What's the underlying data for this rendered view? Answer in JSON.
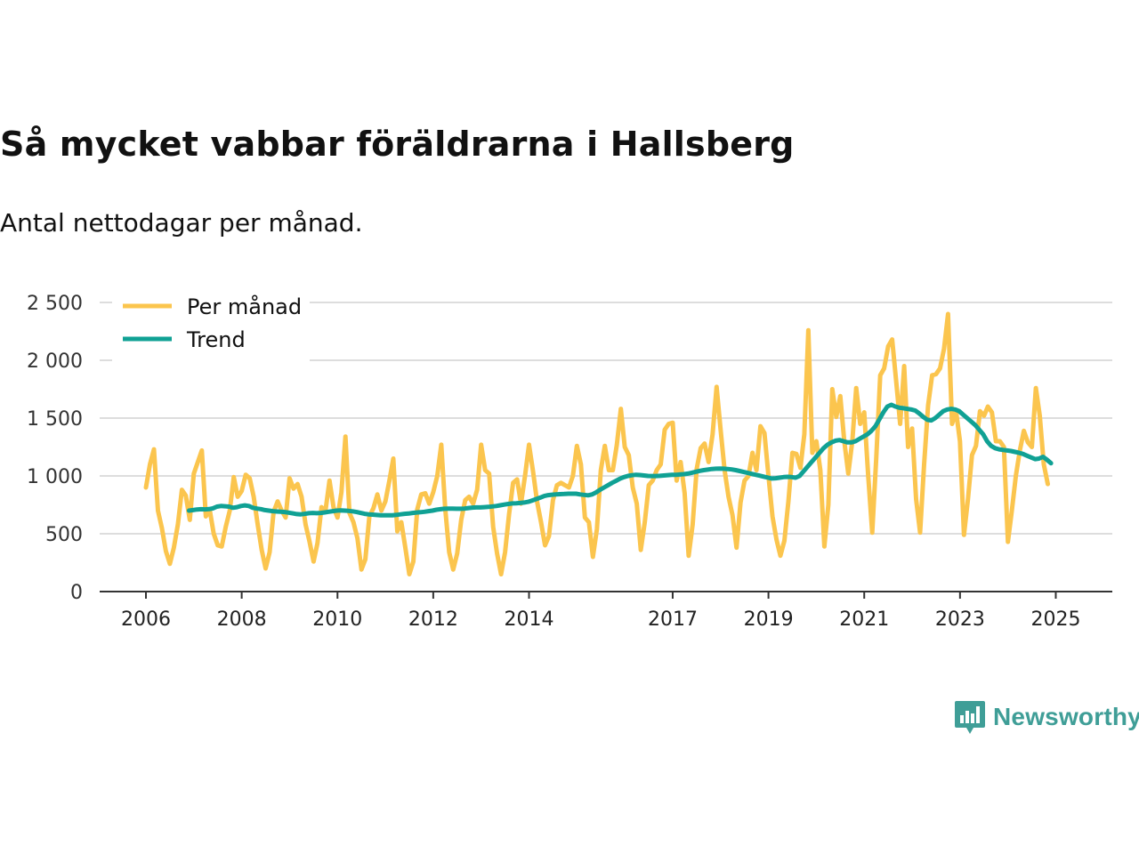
{
  "title": "Så mycket vabbar föräldrarna i Hallsberg",
  "subtitle": "Antal nettodagar per månad.",
  "logo": {
    "text": "Newsworthy"
  },
  "colors": {
    "monthly": "#fbc54e",
    "trend": "#10a194",
    "grid": "#dddddd",
    "axis": "#333333"
  },
  "chart_data": {
    "type": "line",
    "x_start": 2006.0,
    "x_step_months": 1,
    "xlim": [
      2006.0,
      2025.4
    ],
    "ylim": [
      0,
      2500
    ],
    "yticks": [
      0,
      500,
      1000,
      1500,
      2000,
      2500
    ],
    "ytick_labels": [
      "0",
      "500",
      "1 000",
      "1 500",
      "2 000",
      "2 500"
    ],
    "xticks": [
      2006,
      2008,
      2010,
      2012,
      2014,
      2017,
      2019,
      2021,
      2023,
      2025
    ],
    "xtick_labels": [
      "2006",
      "2008",
      "2010",
      "2012",
      "2014",
      "2017",
      "2019",
      "2021",
      "2023",
      "2025"
    ],
    "legend": [
      "Per månad",
      "Trend"
    ],
    "series": [
      {
        "name": "Per månad",
        "values": [
          900,
          1100,
          1230,
          700,
          550,
          350,
          240,
          380,
          580,
          880,
          830,
          620,
          1020,
          1120,
          1220,
          650,
          700,
          500,
          400,
          390,
          560,
          700,
          990,
          820,
          870,
          1010,
          980,
          820,
          580,
          360,
          200,
          340,
          690,
          780,
          700,
          640,
          980,
          890,
          930,
          820,
          580,
          430,
          260,
          420,
          730,
          700,
          960,
          730,
          640,
          860,
          1340,
          680,
          600,
          460,
          190,
          280,
          650,
          720,
          840,
          700,
          780,
          960,
          1150,
          520,
          600,
          380,
          150,
          260,
          710,
          840,
          850,
          760,
          860,
          1000,
          1270,
          720,
          340,
          190,
          330,
          620,
          790,
          820,
          760,
          880,
          1270,
          1050,
          1020,
          560,
          330,
          150,
          340,
          670,
          940,
          970,
          760,
          1000,
          1270,
          1040,
          780,
          600,
          400,
          480,
          790,
          920,
          940,
          920,
          900,
          1000,
          1260,
          1100,
          640,
          600,
          300,
          540,
          1050,
          1260,
          1050,
          1050,
          1270,
          1580,
          1250,
          1180,
          900,
          760,
          360,
          600,
          920,
          960,
          1050,
          1100,
          1400,
          1450,
          1460,
          960,
          1120,
          850,
          310,
          580,
          1060,
          1240,
          1280,
          1120,
          1360,
          1770,
          1400,
          1050,
          820,
          660,
          380,
          770,
          960,
          1000,
          1200,
          1050,
          1430,
          1370,
          1000,
          650,
          450,
          310,
          440,
          780,
          1200,
          1190,
          1070,
          1360,
          2260,
          1200,
          1300,
          1050,
          390,
          750,
          1750,
          1510,
          1690,
          1300,
          1020,
          1300,
          1760,
          1450,
          1550,
          1000,
          510,
          1150,
          1870,
          1930,
          2120,
          2180,
          1820,
          1450,
          1950,
          1250,
          1410,
          800,
          510,
          1100,
          1610,
          1870,
          1880,
          1930,
          2100,
          2400,
          1450,
          1560,
          1300,
          490,
          800,
          1180,
          1260,
          1560,
          1520,
          1600,
          1550,
          1300,
          1300,
          1250,
          430,
          700,
          1000,
          1220,
          1390,
          1290,
          1250,
          1760,
          1520,
          1100,
          930
        ]
      },
      {
        "name": "Trend",
        "x_start": 2006.9,
        "values": [
          700,
          705,
          710,
          712,
          711,
          713,
          720,
          735,
          740,
          738,
          735,
          725,
          730,
          740,
          745,
          740,
          725,
          718,
          713,
          705,
          700,
          695,
          692,
          690,
          688,
          682,
          676,
          670,
          668,
          672,
          678,
          680,
          678,
          680,
          685,
          690,
          695,
          700,
          702,
          700,
          698,
          694,
          688,
          680,
          672,
          668,
          665,
          662,
          660,
          660,
          660,
          660,
          663,
          668,
          672,
          675,
          680,
          684,
          686,
          690,
          695,
          700,
          708,
          712,
          716,
          718,
          718,
          716,
          716,
          718,
          722,
          726,
          728,
          728,
          730,
          732,
          736,
          740,
          746,
          752,
          758,
          762,
          764,
          766,
          770,
          776,
          788,
          800,
          812,
          826,
          834,
          838,
          840,
          842,
          844,
          846,
          846,
          846,
          840,
          836,
          832,
          840,
          858,
          880,
          900,
          920,
          940,
          958,
          976,
          990,
          1000,
          1006,
          1010,
          1008,
          1004,
          1000,
          999,
          999,
          1001,
          1004,
          1007,
          1009,
          1010,
          1012,
          1015,
          1020,
          1028,
          1036,
          1044,
          1050,
          1055,
          1060,
          1062,
          1063,
          1062,
          1060,
          1056,
          1050,
          1042,
          1034,
          1026,
          1018,
          1010,
          1002,
          994,
          986,
          978,
          980,
          985,
          990,
          992,
          990,
          985,
          1000,
          1040,
          1080,
          1120,
          1160,
          1200,
          1240,
          1270,
          1290,
          1305,
          1310,
          1300,
          1290,
          1290,
          1300,
          1320,
          1340,
          1360,
          1390,
          1430,
          1490,
          1550,
          1600,
          1615,
          1600,
          1590,
          1585,
          1580,
          1575,
          1565,
          1540,
          1510,
          1485,
          1480,
          1500,
          1530,
          1560,
          1575,
          1580,
          1575,
          1560,
          1530,
          1500,
          1470,
          1440,
          1400,
          1360,
          1300,
          1260,
          1240,
          1230,
          1225,
          1220,
          1215,
          1208,
          1200,
          1190,
          1175,
          1160,
          1145,
          1150,
          1165,
          1140,
          1110
        ]
      }
    ]
  }
}
